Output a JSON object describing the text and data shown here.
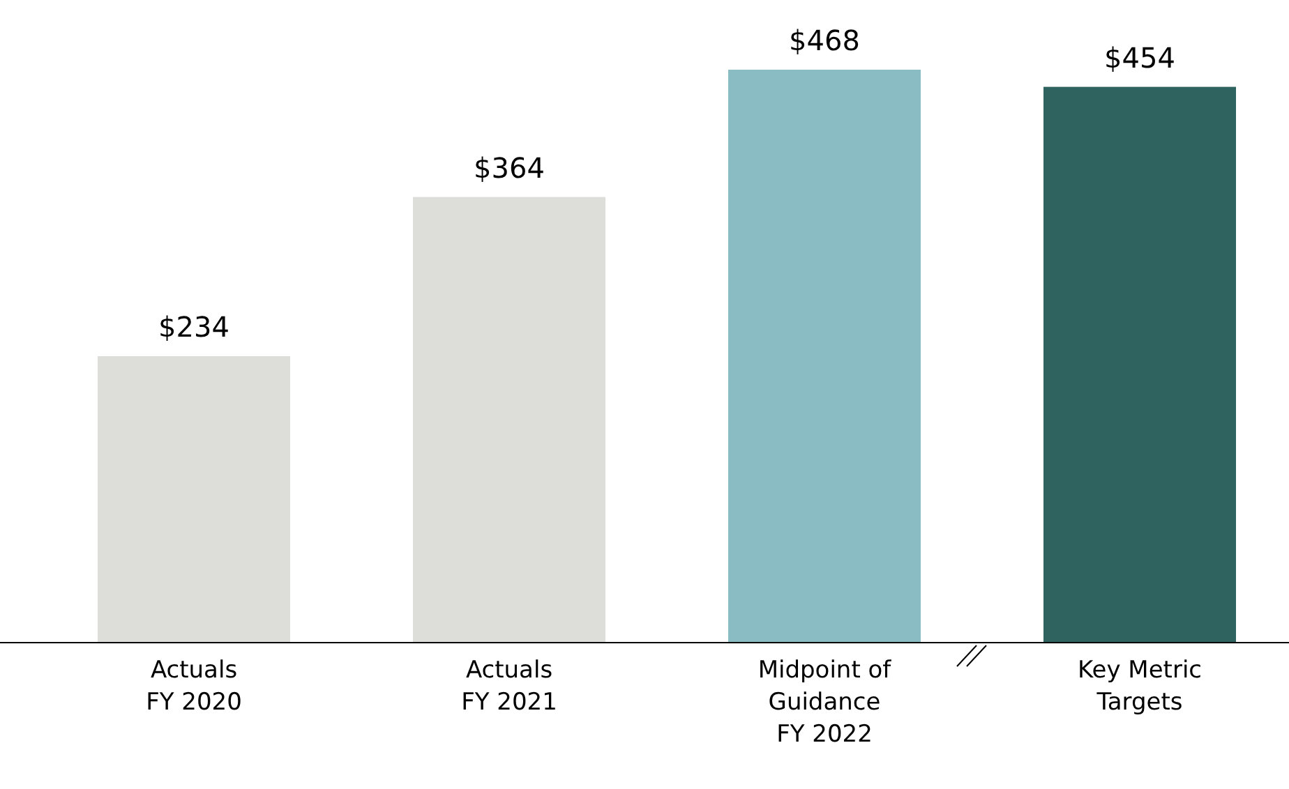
{
  "chart_data": {
    "type": "bar",
    "categories": [
      "Actuals\nFY 2020",
      "Actuals\nFY 2021",
      "Midpoint of\nGuidance\nFY 2022",
      "Key Metric\nTargets"
    ],
    "values": [
      234,
      364,
      468,
      454
    ],
    "colors": [
      "#dddeda",
      "#dddeda",
      "#8abcc3",
      "#2f6360"
    ],
    "value_labels": [
      "$234",
      "$364",
      "$468",
      "$454"
    ]
  }
}
